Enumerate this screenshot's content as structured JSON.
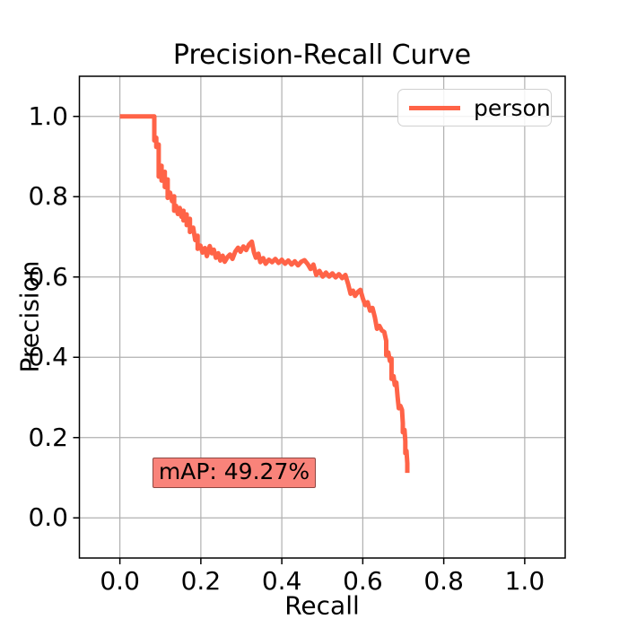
{
  "title": "Precision-Recall Curve",
  "xlabel": "Recall",
  "ylabel": "Precision",
  "legend": {
    "label": "person",
    "line_color": "#ff6347"
  },
  "annotation": {
    "text": "mAP: 49.27%",
    "fill": "#f9837a",
    "border": "#8e4742"
  },
  "colors": {
    "curve": "#ff6347",
    "grid": "#b0b0b0",
    "spine": "#000000",
    "background": "#ffffff"
  },
  "chart_data": {
    "type": "line",
    "title": "Precision-Recall Curve",
    "xlabel": "Recall",
    "ylabel": "Precision",
    "xlim": [
      -0.1,
      1.1
    ],
    "ylim": [
      -0.1,
      1.1
    ],
    "grid": true,
    "legend_position": "upper right",
    "x_tick_values": [
      0.0,
      0.2,
      0.4,
      0.6,
      0.8,
      1.0
    ],
    "x_tick_labels": [
      "0.0",
      "0.2",
      "0.4",
      "0.6",
      "0.8",
      "1.0"
    ],
    "y_tick_values": [
      0.0,
      0.2,
      0.4,
      0.6,
      0.8,
      1.0
    ],
    "y_tick_labels": [
      "0.0",
      "0.2",
      "0.4",
      "0.6",
      "0.8",
      "1.0"
    ],
    "annotation": "mAP: 49.27%",
    "series": [
      {
        "name": "person",
        "color": "#ff6347",
        "points": [
          [
            0.0,
            1.0
          ],
          [
            0.085,
            1.0
          ],
          [
            0.085,
            0.94
          ],
          [
            0.09,
            0.947
          ],
          [
            0.09,
            0.924
          ],
          [
            0.096,
            0.93
          ],
          [
            0.096,
            0.85
          ],
          [
            0.103,
            0.877
          ],
          [
            0.103,
            0.84
          ],
          [
            0.111,
            0.862
          ],
          [
            0.111,
            0.824
          ],
          [
            0.118,
            0.843
          ],
          [
            0.118,
            0.797
          ],
          [
            0.124,
            0.81
          ],
          [
            0.129,
            0.789
          ],
          [
            0.134,
            0.801
          ],
          [
            0.134,
            0.765
          ],
          [
            0.139,
            0.777
          ],
          [
            0.143,
            0.757
          ],
          [
            0.148,
            0.772
          ],
          [
            0.152,
            0.75
          ],
          [
            0.157,
            0.765
          ],
          [
            0.157,
            0.741
          ],
          [
            0.165,
            0.756
          ],
          [
            0.165,
            0.729
          ],
          [
            0.173,
            0.745
          ],
          [
            0.173,
            0.712
          ],
          [
            0.181,
            0.723
          ],
          [
            0.186,
            0.692
          ],
          [
            0.192,
            0.703
          ],
          [
            0.192,
            0.67
          ],
          [
            0.199,
            0.678
          ],
          [
            0.204,
            0.661
          ],
          [
            0.21,
            0.672
          ],
          [
            0.215,
            0.652
          ],
          [
            0.222,
            0.677
          ],
          [
            0.227,
            0.659
          ],
          [
            0.232,
            0.668
          ],
          [
            0.237,
            0.648
          ],
          [
            0.243,
            0.659
          ],
          [
            0.248,
            0.641
          ],
          [
            0.254,
            0.653
          ],
          [
            0.259,
            0.638
          ],
          [
            0.266,
            0.65
          ],
          [
            0.272,
            0.656
          ],
          [
            0.278,
            0.645
          ],
          [
            0.285,
            0.663
          ],
          [
            0.292,
            0.673
          ],
          [
            0.298,
            0.663
          ],
          [
            0.305,
            0.676
          ],
          [
            0.312,
            0.667
          ],
          [
            0.319,
            0.681
          ],
          [
            0.326,
            0.688
          ],
          [
            0.331,
            0.662
          ],
          [
            0.336,
            0.648
          ],
          [
            0.342,
            0.658
          ],
          [
            0.347,
            0.637
          ],
          [
            0.354,
            0.647
          ],
          [
            0.36,
            0.633
          ],
          [
            0.368,
            0.643
          ],
          [
            0.376,
            0.637
          ],
          [
            0.384,
            0.645
          ],
          [
            0.392,
            0.635
          ],
          [
            0.4,
            0.643
          ],
          [
            0.408,
            0.633
          ],
          [
            0.416,
            0.641
          ],
          [
            0.424,
            0.631
          ],
          [
            0.432,
            0.639
          ],
          [
            0.44,
            0.629
          ],
          [
            0.448,
            0.638
          ],
          [
            0.456,
            0.642
          ],
          [
            0.464,
            0.632
          ],
          [
            0.471,
            0.62
          ],
          [
            0.478,
            0.631
          ],
          [
            0.485,
            0.605
          ],
          [
            0.493,
            0.615
          ],
          [
            0.501,
            0.601
          ],
          [
            0.509,
            0.611
          ],
          [
            0.517,
            0.601
          ],
          [
            0.525,
            0.609
          ],
          [
            0.533,
            0.599
          ],
          [
            0.541,
            0.607
          ],
          [
            0.549,
            0.597
          ],
          [
            0.557,
            0.605
          ],
          [
            0.564,
            0.582
          ],
          [
            0.57,
            0.558
          ],
          [
            0.576,
            0.566
          ],
          [
            0.581,
            0.553
          ],
          [
            0.588,
            0.563
          ],
          [
            0.594,
            0.568
          ],
          [
            0.6,
            0.547
          ],
          [
            0.606,
            0.53
          ],
          [
            0.612,
            0.537
          ],
          [
            0.618,
            0.516
          ],
          [
            0.624,
            0.523
          ],
          [
            0.63,
            0.499
          ],
          [
            0.635,
            0.471
          ],
          [
            0.641,
            0.478
          ],
          [
            0.647,
            0.467
          ],
          [
            0.653,
            0.463
          ],
          [
            0.658,
            0.441
          ],
          [
            0.658,
            0.405
          ],
          [
            0.663,
            0.412
          ],
          [
            0.667,
            0.391
          ],
          [
            0.671,
            0.397
          ],
          [
            0.671,
            0.346
          ],
          [
            0.676,
            0.353
          ],
          [
            0.679,
            0.331
          ],
          [
            0.683,
            0.337
          ],
          [
            0.686,
            0.301
          ],
          [
            0.689,
            0.273
          ],
          [
            0.693,
            0.279
          ],
          [
            0.697,
            0.269
          ],
          [
            0.699,
            0.236
          ],
          [
            0.699,
            0.213
          ],
          [
            0.703,
            0.219
          ],
          [
            0.705,
            0.191
          ],
          [
            0.705,
            0.161
          ],
          [
            0.708,
            0.167
          ],
          [
            0.71,
            0.136
          ],
          [
            0.71,
            0.112
          ]
        ]
      }
    ]
  }
}
